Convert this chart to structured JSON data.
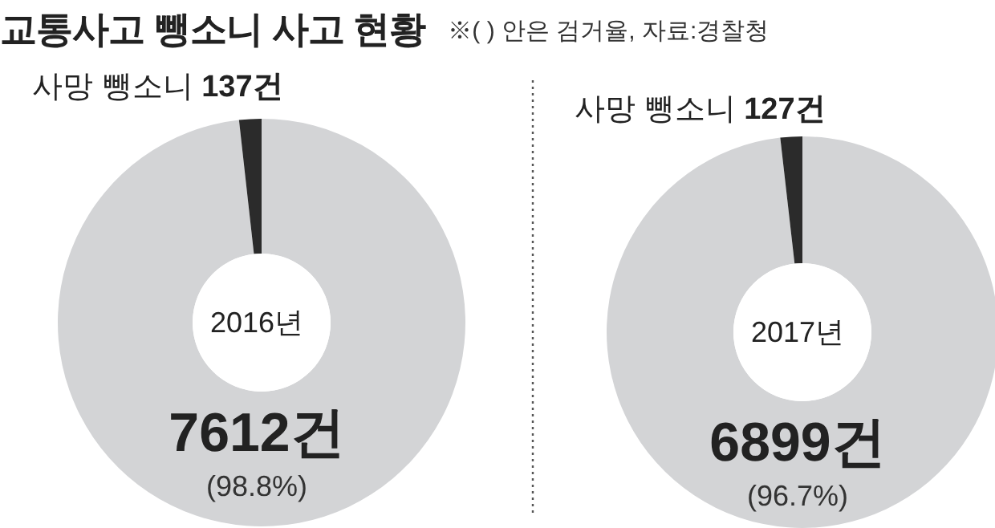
{
  "chart_data": [
    {
      "type": "donut",
      "title": "교통사고 뺑소니 사고 현황",
      "subtitle": "2016년",
      "categories": [
        null,
        "사망 뺑소니"
      ],
      "values": [
        7612,
        137
      ],
      "colors": [
        "#d3d4d6",
        "#2b2b2b"
      ],
      "value_labels": [
        "7612건",
        "137건"
      ],
      "annotations": [
        "※( ) 안은 검거율, 자료:경찰청",
        "(98.8%)"
      ]
    },
    {
      "type": "donut",
      "subtitle": "2017년",
      "categories": [
        null,
        "사망 뺑소니"
      ],
      "values": [
        6899,
        127
      ],
      "colors": [
        "#d3d4d6",
        "#2b2b2b"
      ],
      "value_labels": [
        "6899건",
        "127건"
      ],
      "annotations": [
        "(96.7%)"
      ]
    }
  ]
}
